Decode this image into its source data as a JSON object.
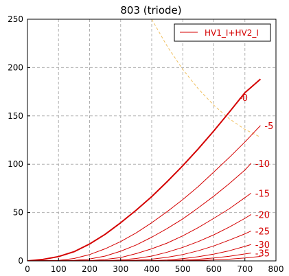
{
  "chart_data": {
    "type": "line",
    "title": "803 (triode)",
    "xlabel": "",
    "ylabel": "",
    "xlim": [
      0,
      800
    ],
    "ylim": [
      0,
      250
    ],
    "xticks": [
      0,
      100,
      200,
      300,
      400,
      500,
      600,
      700,
      800
    ],
    "yticks": [
      0,
      50,
      100,
      150,
      200,
      250
    ],
    "grid": true,
    "legend": {
      "placement": "top-right",
      "entries": [
        "HV1_I+HV2_I"
      ]
    },
    "colors": {
      "curves": "#d40000",
      "load_line": "#f0c060",
      "grid": "#b0b0b0",
      "axes": "#000000"
    },
    "series": [
      {
        "label": "-0",
        "bold": true,
        "x": [
          0,
          50,
          100,
          150,
          200,
          250,
          300,
          350,
          400,
          450,
          500,
          550,
          600,
          650,
          700,
          750
        ],
        "y": [
          0,
          1.5,
          4.5,
          9.5,
          17.5,
          27.5,
          39.5,
          52.5,
          66.5,
          82,
          98.5,
          116,
          134.5,
          154,
          174,
          188
        ]
      },
      {
        "label": "-5",
        "x": [
          0,
          100,
          150,
          200,
          250,
          300,
          350,
          400,
          450,
          500,
          550,
          600,
          650,
          700,
          750
        ],
        "y": [
          0,
          0.5,
          2.5,
          6.5,
          12.5,
          20,
          29,
          39.5,
          51,
          63.5,
          77,
          92,
          107,
          123,
          140
        ]
      },
      {
        "label": "-10",
        "x": [
          0,
          150,
          200,
          250,
          300,
          350,
          400,
          450,
          500,
          550,
          600,
          650,
          700,
          720
        ],
        "y": [
          0,
          0.5,
          2,
          5,
          10,
          16.5,
          24.5,
          33.5,
          43.5,
          55,
          67,
          80,
          94,
          101
        ]
      },
      {
        "label": "-15",
        "x": [
          0,
          200,
          250,
          300,
          350,
          400,
          450,
          500,
          550,
          600,
          650,
          700,
          720
        ],
        "y": [
          0,
          0.3,
          1.5,
          3.5,
          7.5,
          12.5,
          18.5,
          26,
          34.5,
          44,
          54,
          65.5,
          70
        ]
      },
      {
        "label": "-20",
        "x": [
          0,
          250,
          300,
          350,
          400,
          450,
          500,
          550,
          600,
          650,
          700,
          720
        ],
        "y": [
          0,
          0.2,
          1,
          2.5,
          5,
          9,
          14,
          20,
          27,
          35,
          44,
          48
        ]
      },
      {
        "label": "-25",
        "x": [
          0,
          300,
          350,
          400,
          450,
          500,
          550,
          600,
          650,
          700,
          720
        ],
        "y": [
          0,
          0.2,
          0.7,
          1.8,
          3.7,
          6.5,
          10.5,
          15.5,
          21.5,
          28,
          31
        ]
      },
      {
        "label": "-30",
        "x": [
          0,
          400,
          450,
          500,
          550,
          600,
          650,
          700,
          720
        ],
        "y": [
          0,
          0.3,
          1,
          2.3,
          4.3,
          7,
          10.5,
          15,
          17
        ]
      },
      {
        "label": "-35",
        "x": [
          0,
          450,
          500,
          550,
          600,
          650,
          700,
          720
        ],
        "y": [
          0,
          0.3,
          0.8,
          1.7,
          3,
          4.8,
          7.2,
          8.2
        ]
      },
      {
        "label": "",
        "x": [
          0,
          500,
          550,
          600,
          650,
          700,
          750
        ],
        "y": [
          0,
          0.2,
          0.5,
          1,
          1.8,
          3,
          4.6
        ]
      }
    ],
    "load_line": {
      "x": [
        400,
        450,
        500,
        550,
        600,
        650,
        700,
        750
      ],
      "y": [
        250,
        222,
        198,
        178,
        161,
        147,
        136,
        128
      ]
    }
  }
}
